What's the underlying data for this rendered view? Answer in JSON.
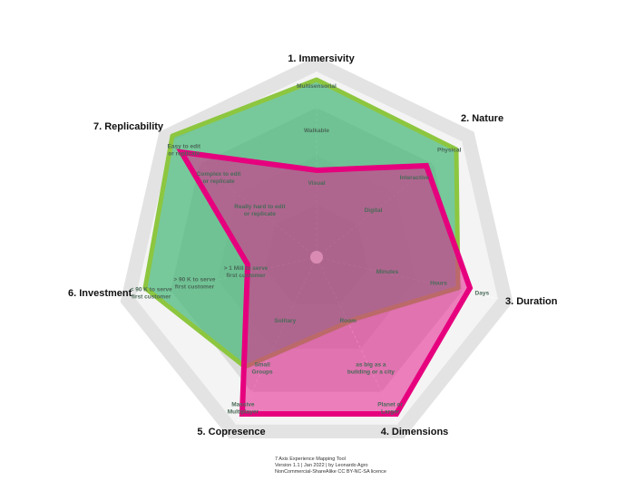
{
  "axes": [
    {
      "name": "1. Immersivity",
      "levels": [
        [
          "Multisensorial"
        ],
        [
          "Walkable"
        ],
        [
          "Visual"
        ]
      ]
    },
    {
      "name": "2. Nature",
      "levels": [
        [
          "Physical"
        ],
        [
          "Interactive"
        ],
        [
          "Digital"
        ]
      ]
    },
    {
      "name": "3. Duration",
      "levels": [
        [
          "Days"
        ],
        [
          "Hours"
        ],
        [
          "Minutes"
        ]
      ]
    },
    {
      "name": "4. Dimensions",
      "levels": [
        [
          "Planet or",
          "Larger"
        ],
        [
          "as big as a",
          "building or a city"
        ],
        [
          "Room"
        ]
      ]
    },
    {
      "name": "5. Copresence",
      "levels": [
        [
          "Massive",
          "Multiplayer"
        ],
        [
          "Small",
          "Groups"
        ],
        [
          "Solitary"
        ]
      ]
    },
    {
      "name": "6. Investment",
      "levels": [
        [
          "< 90 K to serve",
          "first customer"
        ],
        [
          "> 90 K to serve",
          "first customer"
        ],
        [
          "> 1 Mill to serve",
          "first customer"
        ]
      ]
    },
    {
      "name": "7. Replicability",
      "levels": [
        [
          "Easy to edit",
          "or replicate"
        ],
        [
          "Complex to edit",
          "or replicate"
        ],
        [
          "Really hard to edit",
          "or replicate"
        ]
      ]
    }
  ],
  "footer": {
    "title": "7 Axis Experience Mapping Tool",
    "version": "Version 1.1 | Jan 2022 | by Leonardo Agro",
    "licence": "NonCommercial-ShareAlike CC BY-NC-SA licence"
  }
}
